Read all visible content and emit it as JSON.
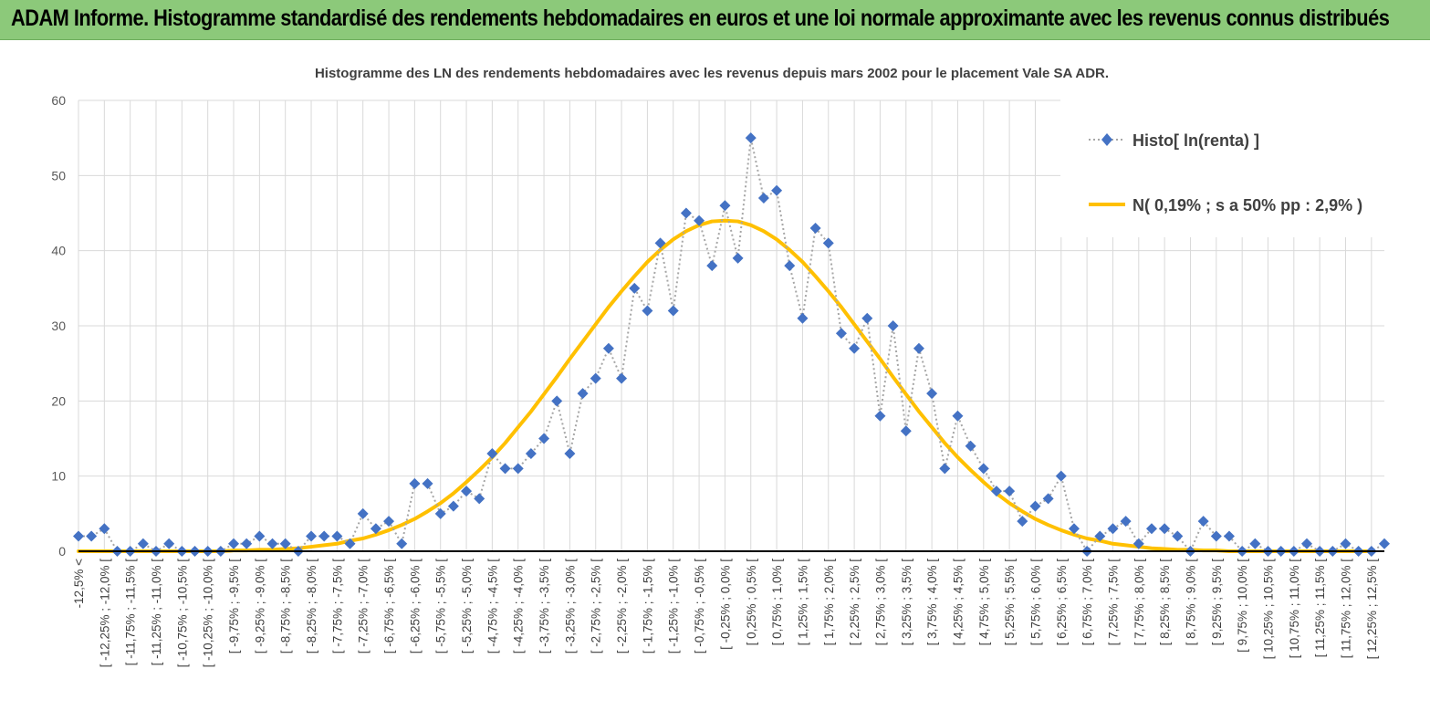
{
  "header": {
    "title": "ADAM Informe. Histogramme standardisé des rendements hebdomadaires en euros et une loi normale approximante avec les revenus connus distribués"
  },
  "colors": {
    "banner": "#8cc97a",
    "histogram": "#4472c4",
    "histogram_line": "#a6a6a6",
    "normal": "#ffc000",
    "axis": "#000000",
    "grid": "#d9d9d9"
  },
  "chart_data": {
    "type": "line",
    "title": "Histogramme des LN des rendements hebdomadaires avec les revenus depuis mars 2002 pour le placement Vale SA ADR.",
    "xlabel": "",
    "ylabel": "",
    "ylim": [
      0,
      60
    ],
    "yticks": [
      0,
      10,
      20,
      30,
      40,
      50,
      60
    ],
    "grid": true,
    "legend_position": "top-right",
    "bin_labels": [
      "-12,5% <",
      "[ -12,25% ; -12,0% [",
      "[ -11,75% ; -11,5% [",
      "[ -11,25% ; -11,0% [",
      "[ -10,75% ; -10,5% [",
      "[ -10,25% ; -10,0% [",
      "[ -9,75% ; -9,5% [",
      "[ -9,25% ; -9,0% [",
      "[ -8,75% ; -8,5% [",
      "[ -8,25% ; -8,0% [",
      "[ -7,75% ; -7,5% [",
      "[ -7,25% ; -7,0% [",
      "[ -6,75% ; -6,5% [",
      "[ -6,25% ; -6,0% [",
      "[ -5,75% ; -5,5% [",
      "[ -5,25% ; -5,0% [",
      "[ -4,75% ; -4,5% [",
      "[ -4,25% ; -4,0% [",
      "[ -3,75% ; -3,5% [",
      "[ -3,25% ; -3,0% [",
      "[ -2,75% ; -2,5% [",
      "[ -2,25% ; -2,0% [",
      "[ -1,75% ; -1,5% [",
      "[ -1,25% ; -1,0% [",
      "[ -0,75% ; -0,5% [",
      "[ -0,25% ; 0,0% [",
      "[ 0,25% ; 0,5% [",
      "[ 0,75% ; 1,0% [",
      "[ 1,25% ; 1,5% [",
      "[ 1,75% ; 2,0% [",
      "[ 2,25% ; 2,5% [",
      "[ 2,75% ; 3,0% [",
      "[ 3,25% ; 3,5% [",
      "[ 3,75% ; 4,0% [",
      "[ 4,25% ; 4,5% [",
      "[ 4,75% ; 5,0% [",
      "[ 5,25% ; 5,5% [",
      "[ 5,75% ; 6,0% [",
      "[ 6,25% ; 6,5% [",
      "[ 6,75% ; 7,0% [",
      "[ 7,25% ; 7,5% [",
      "[ 7,75% ; 8,0% [",
      "[ 8,25% ; 8,5% [",
      "[ 8,75% ; 9,0% [",
      "[ 9,25% ; 9,5% [",
      "[ 9,75% ; 10,0% [",
      "[ 10,25% ; 10,5% [",
      "[ 10,75% ; 11,0% [",
      "[ 11,25% ; 11,5% [",
      "[ 11,75% ; 12,0% [",
      "[ 12,25% ; 12,5% ["
    ],
    "series": [
      {
        "name": "Histo[ ln(renta) ]",
        "style": "dotted-line-diamond-markers",
        "values": [
          2,
          2,
          3,
          0,
          0,
          1,
          0,
          1,
          0,
          0,
          0,
          0,
          1,
          1,
          2,
          1,
          1,
          0,
          2,
          2,
          2,
          1,
          5,
          3,
          4,
          1,
          9,
          9,
          5,
          6,
          8,
          7,
          13,
          11,
          11,
          13,
          15,
          20,
          13,
          21,
          23,
          27,
          23,
          35,
          32,
          41,
          32,
          45,
          44,
          38,
          46,
          39,
          55,
          47,
          48,
          38,
          31,
          43,
          41,
          29,
          27,
          31,
          18,
          30,
          16,
          27,
          21,
          11,
          18,
          14,
          11,
          8,
          8,
          4,
          6,
          7,
          10,
          3,
          0,
          2,
          3,
          4,
          1,
          3,
          3,
          2,
          0,
          4,
          2,
          2,
          0,
          1,
          0,
          0,
          0,
          1,
          0,
          0,
          1,
          0,
          0,
          1
        ]
      },
      {
        "name": "N( 0,19% ; s a 50% pp : 2,9% )",
        "style": "smooth-line",
        "mean": 0.19,
        "sd": 2.9,
        "values": [
          0.0,
          0.0,
          0.0,
          0.0,
          0.0,
          0.0,
          0.0,
          0.0,
          0.0,
          0.0,
          0.0,
          0.0,
          0.1,
          0.1,
          0.2,
          0.2,
          0.3,
          0.4,
          0.6,
          0.8,
          1.0,
          1.4,
          1.7,
          2.2,
          2.8,
          3.5,
          4.3,
          5.3,
          6.4,
          7.7,
          9.2,
          10.8,
          12.5,
          14.4,
          16.5,
          18.6,
          20.9,
          23.2,
          25.6,
          27.9,
          30.2,
          32.5,
          34.6,
          36.6,
          38.5,
          40.1,
          41.5,
          42.6,
          43.4,
          43.9,
          44.0,
          43.9,
          43.4,
          42.6,
          41.5,
          40.1,
          38.5,
          36.6,
          34.6,
          32.5,
          30.2,
          27.9,
          25.6,
          23.2,
          20.9,
          18.6,
          16.5,
          14.4,
          12.5,
          10.8,
          9.2,
          7.7,
          6.4,
          5.3,
          4.3,
          3.5,
          2.8,
          2.2,
          1.7,
          1.4,
          1.0,
          0.8,
          0.6,
          0.4,
          0.3,
          0.2,
          0.2,
          0.1,
          0.1,
          0.0,
          0.0,
          0.0,
          0.0,
          0.0,
          0.0,
          0.0,
          0.0,
          0.0,
          0.0,
          0.0,
          0.0
        ]
      }
    ]
  }
}
